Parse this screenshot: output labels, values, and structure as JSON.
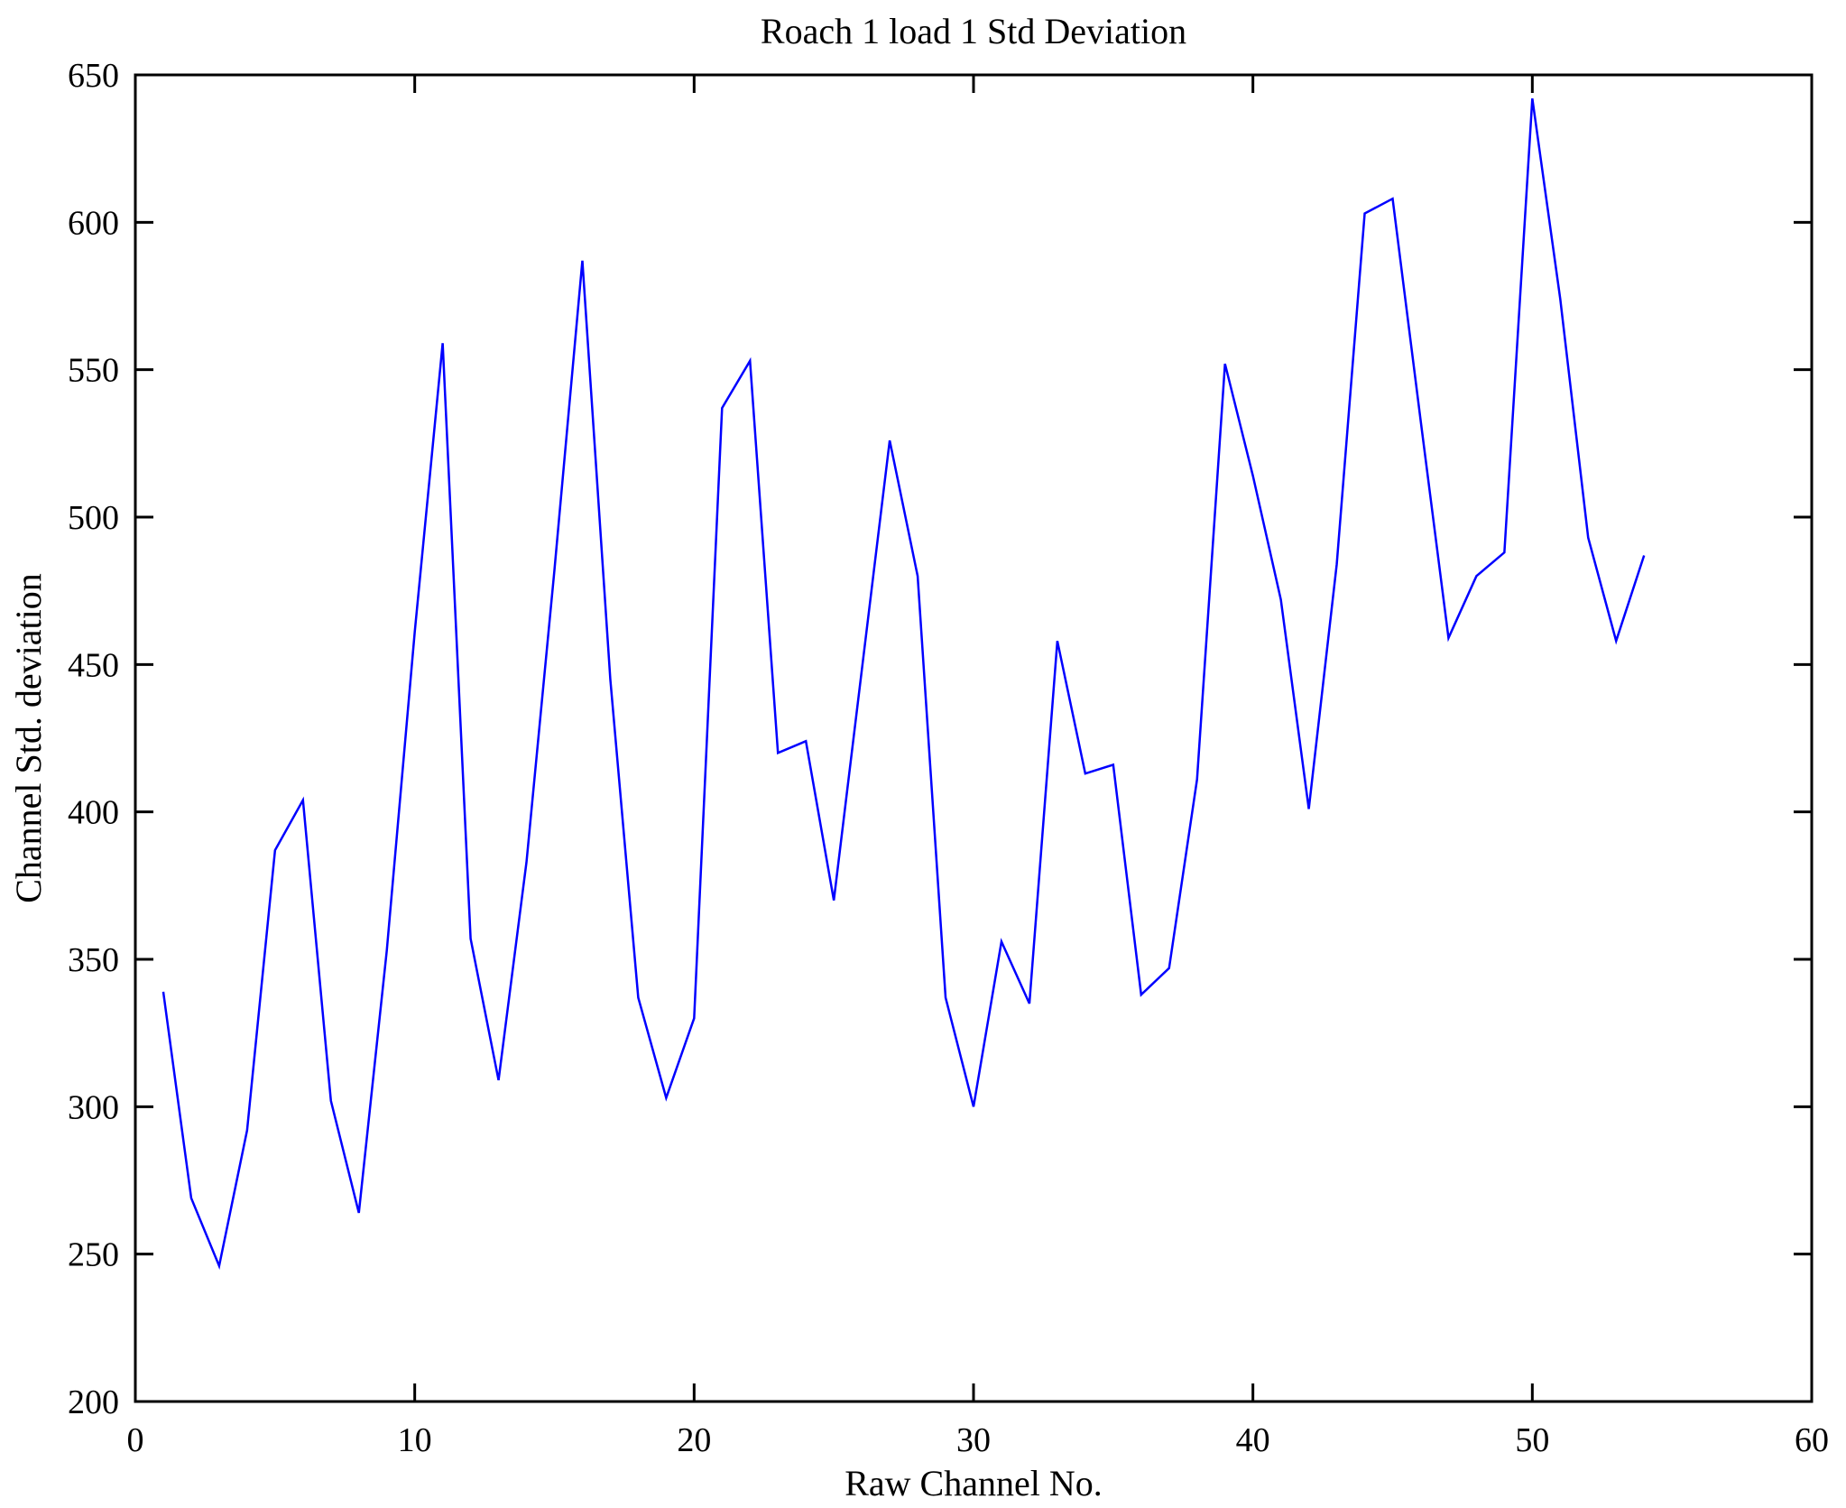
{
  "title": "Roach 1 load 1 Std Deviation",
  "chart_data": {
    "type": "line",
    "title": "Roach 1 load 1 Std Deviation",
    "xlabel": "Raw Channel No.",
    "ylabel": "Channel Std. deviation",
    "xlim": [
      0,
      60
    ],
    "ylim": [
      200,
      650
    ],
    "x_ticks": [
      0,
      10,
      20,
      30,
      40,
      50,
      60
    ],
    "y_ticks": [
      200,
      250,
      300,
      350,
      400,
      450,
      500,
      550,
      600,
      650
    ],
    "grid": false,
    "legend_position": "none",
    "line_color": "#0000ff",
    "background_color": "#ffffff",
    "x": [
      1,
      2,
      3,
      4,
      5,
      6,
      7,
      8,
      9,
      10,
      11,
      12,
      13,
      14,
      15,
      16,
      17,
      18,
      19,
      20,
      21,
      22,
      23,
      24,
      25,
      26,
      27,
      28,
      29,
      30,
      31,
      32,
      33,
      34,
      35,
      36,
      37,
      38,
      39,
      40,
      41,
      42,
      43,
      44,
      45,
      46,
      47,
      48,
      49,
      50,
      51,
      52,
      53,
      54
    ],
    "series": [
      {
        "name": "Channel Std. deviation",
        "values": [
          339,
          269,
          246,
          292,
          387,
          404,
          302,
          264,
          353,
          461,
          559,
          357,
          309,
          383,
          482,
          587,
          445,
          337,
          303,
          330,
          537,
          553,
          420,
          424,
          370,
          448,
          526,
          480,
          337,
          300,
          356,
          335,
          458,
          413,
          416,
          338,
          347,
          411,
          552,
          514,
          472,
          401,
          484,
          603,
          608,
          533,
          459,
          480,
          488,
          642,
          574,
          493,
          458,
          487
        ]
      }
    ]
  }
}
